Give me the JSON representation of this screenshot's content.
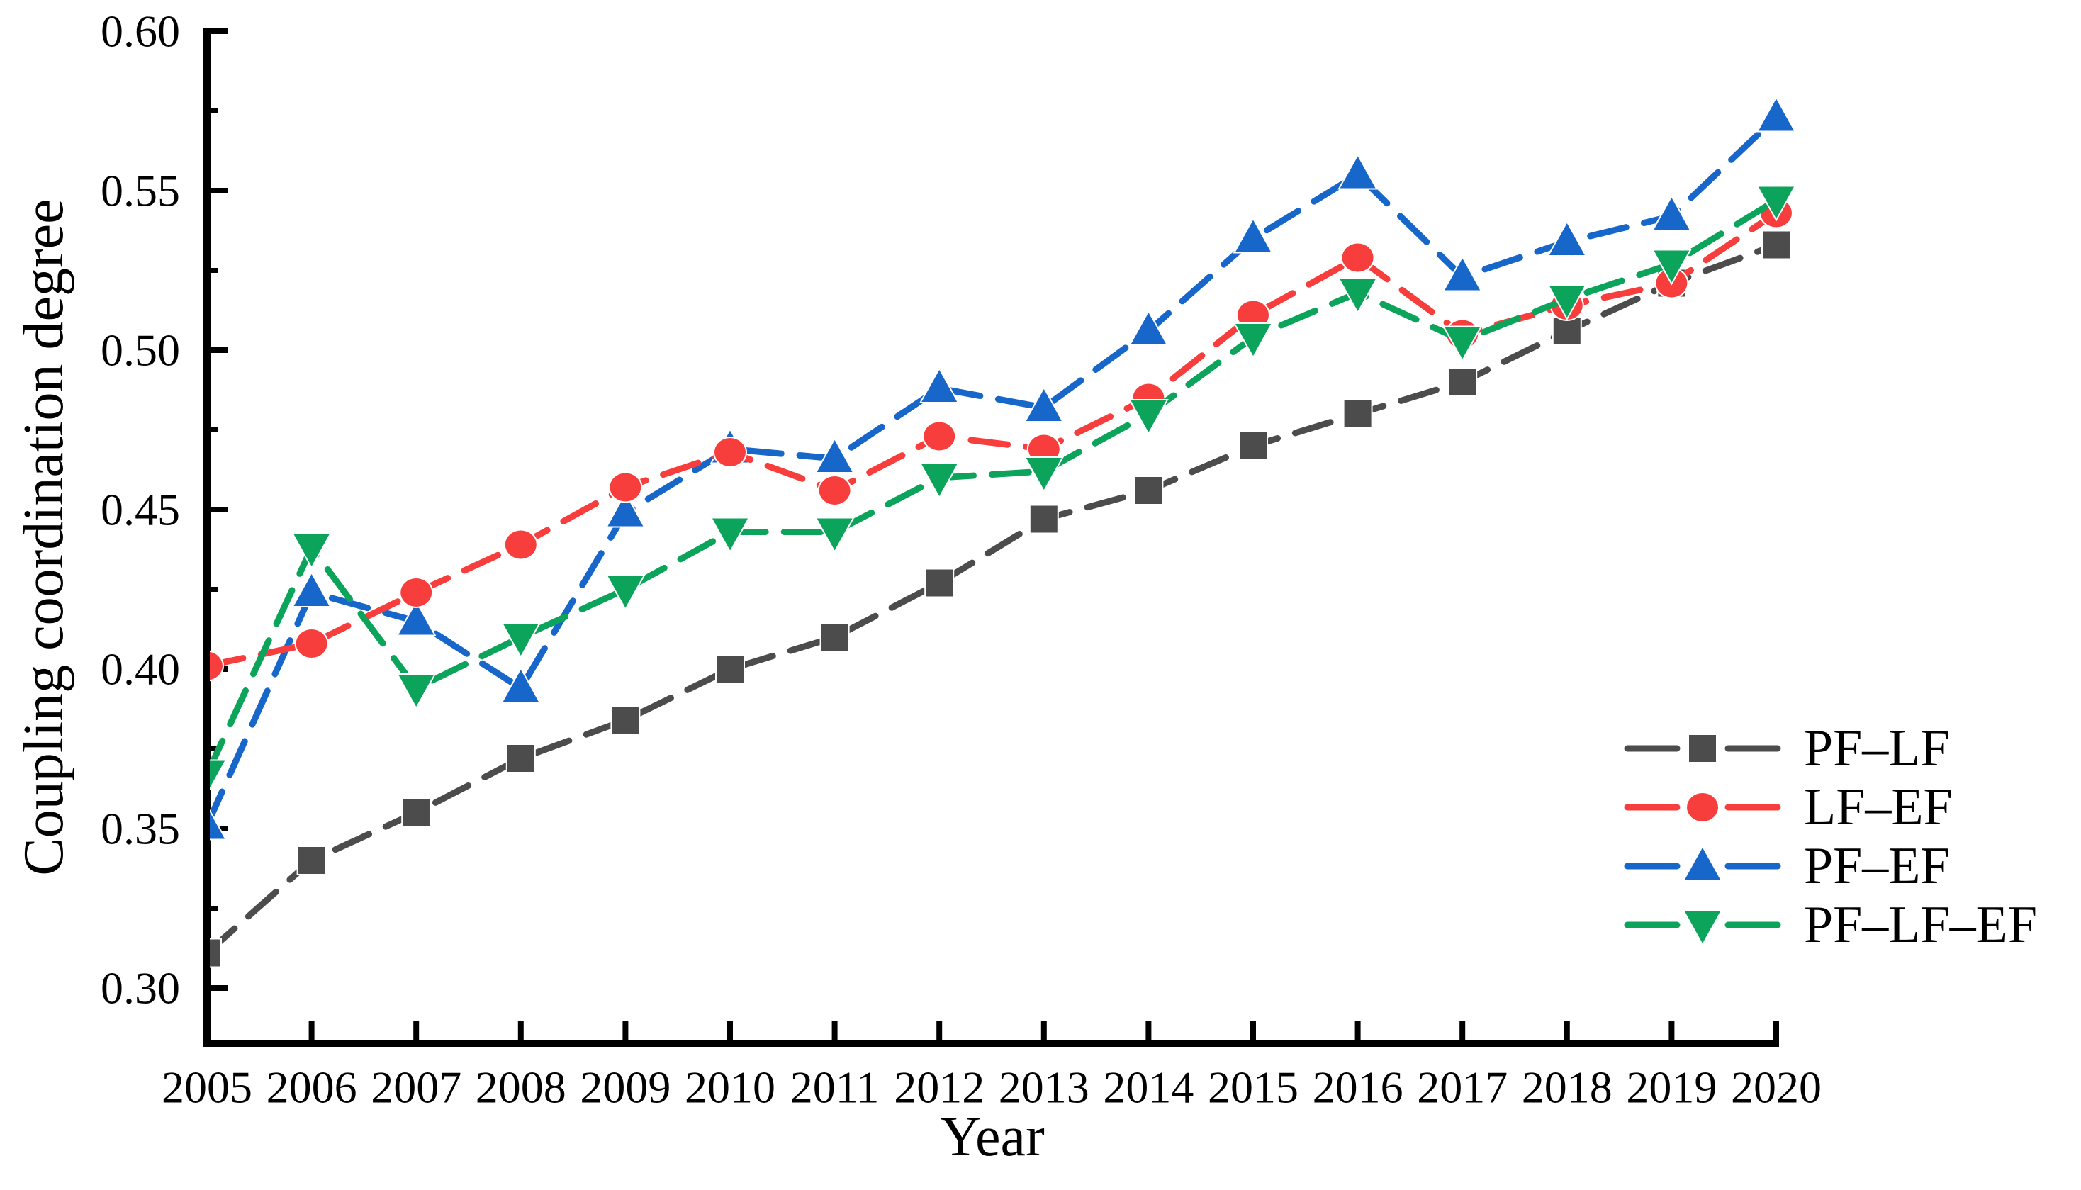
{
  "figure": {
    "background": "#ffffff"
  },
  "chart_data": {
    "type": "line",
    "title": "",
    "xlabel": "Year",
    "ylabel": "Coupling coordination degree",
    "x": [
      2005,
      2006,
      2007,
      2008,
      2009,
      2010,
      2011,
      2012,
      2013,
      2014,
      2015,
      2016,
      2017,
      2018,
      2019,
      2020
    ],
    "xtick_labels": [
      "2005",
      "2006",
      "2007",
      "2008",
      "2009",
      "2010",
      "2011",
      "2012",
      "2013",
      "2014",
      "2015",
      "2016",
      "2017",
      "2018",
      "2019",
      "2020"
    ],
    "ylim": [
      0.283,
      0.6
    ],
    "ytick_values": [
      0.3,
      0.35,
      0.4,
      0.45,
      0.5,
      0.55,
      0.6
    ],
    "yticks": [
      "0.30",
      "0.35",
      "0.40",
      "0.45",
      "0.50",
      "0.55",
      "0.60"
    ],
    "minor_ytick_values": [
      0.325,
      0.375,
      0.425,
      0.475,
      0.525,
      0.575
    ],
    "grid": false,
    "line_style": "dashed",
    "legend": {
      "position": "inside-right"
    },
    "series": [
      {
        "name": "PF–LF",
        "marker": "square",
        "color": "#4C4C4C",
        "values": [
          0.311,
          0.34,
          0.355,
          0.372,
          0.384,
          0.4,
          0.41,
          0.427,
          0.447,
          0.456,
          0.47,
          0.48,
          0.49,
          0.506,
          0.521,
          0.533
        ]
      },
      {
        "name": "LF–EF",
        "marker": "circle",
        "color": "#F83E3D",
        "values": [
          0.401,
          0.408,
          0.424,
          0.439,
          0.457,
          0.468,
          0.456,
          0.473,
          0.469,
          0.485,
          0.511,
          0.529,
          0.505,
          0.514,
          0.521,
          0.543
        ]
      },
      {
        "name": "PF–EF",
        "marker": "triangle-up",
        "color": "#1766C9",
        "values": [
          0.351,
          0.424,
          0.415,
          0.394,
          0.449,
          0.469,
          0.466,
          0.488,
          0.482,
          0.506,
          0.535,
          0.555,
          0.523,
          0.534,
          0.542,
          0.573
        ]
      },
      {
        "name": "PF–LF–EF",
        "marker": "triangle-down",
        "color": "#0CA45B",
        "values": [
          0.367,
          0.438,
          0.394,
          0.41,
          0.425,
          0.443,
          0.443,
          0.46,
          0.462,
          0.48,
          0.504,
          0.518,
          0.503,
          0.516,
          0.527,
          0.547
        ]
      }
    ],
    "z_order": [
      0,
      2,
      1,
      3
    ]
  }
}
